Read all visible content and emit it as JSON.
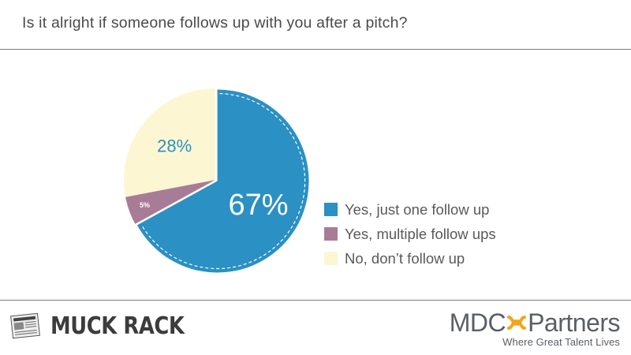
{
  "chart_data": {
    "type": "pie",
    "title": "Is it alright if someone follows up with you after a pitch?",
    "slices": [
      {
        "label": "Yes, just one follow up",
        "value": 67,
        "value_label": "67%",
        "color": "#2b90c3"
      },
      {
        "label": "Yes, multiple follow ups",
        "value": 5,
        "value_label": "5%",
        "color": "#a87c96"
      },
      {
        "label": "No, don’t follow up",
        "value": 28,
        "value_label": "28%",
        "color": "#fcf7d2"
      }
    ],
    "start_angle_deg": 0,
    "direction": "clockwise",
    "legend_position": "right",
    "exploded_slice": "Yes, just one follow up"
  },
  "footer": {
    "left_logo": {
      "icon": "newspaper-icon",
      "text": "MUCK RACK"
    },
    "right_logo": {
      "icon": "infinity-mark-icon",
      "name_part1": "MDC",
      "name_part2": "Partners",
      "tagline": "Where Great Talent Lives",
      "accent": "#f2a51c"
    }
  }
}
